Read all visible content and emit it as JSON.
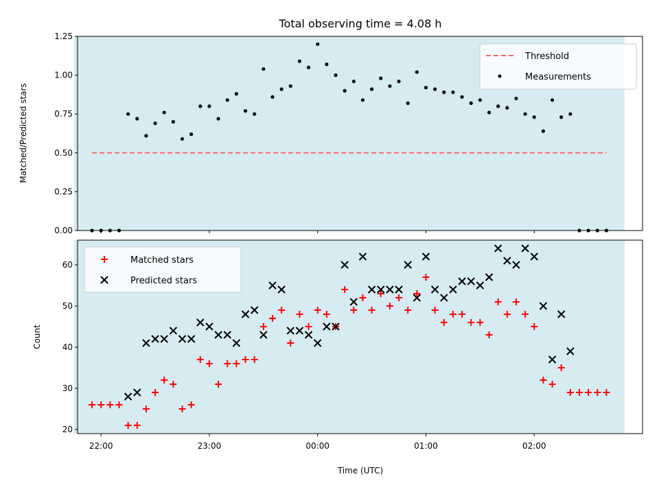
{
  "chart_data": [
    {
      "type": "scatter",
      "title": "Total observing time = 4.08 h",
      "ylabel": "Matched/Predicted stars",
      "xlabel": "",
      "ylim": [
        0,
        1.25
      ],
      "yticks": [
        "0.00",
        "0.25",
        "0.50",
        "0.75",
        "1.00",
        "1.25"
      ],
      "shaded_region": {
        "start": "21:45",
        "end": "02:50",
        "color": "#add8e6"
      },
      "threshold": {
        "name": "Threshold",
        "y": 0.5,
        "x_start": "21:55",
        "x_end": "02:40",
        "color": "#ff6666"
      },
      "series": [
        {
          "name": "Measurements",
          "marker": "dot",
          "color": "#000000",
          "points": [
            [
              "21:55",
              0.0
            ],
            [
              "22:00",
              0.0
            ],
            [
              "22:05",
              0.0
            ],
            [
              "22:10",
              0.0
            ],
            [
              "22:15",
              0.75
            ],
            [
              "22:20",
              0.72
            ],
            [
              "22:25",
              0.61
            ],
            [
              "22:30",
              0.69
            ],
            [
              "22:35",
              0.76
            ],
            [
              "22:40",
              0.7
            ],
            [
              "22:45",
              0.59
            ],
            [
              "22:50",
              0.62
            ],
            [
              "22:55",
              0.8
            ],
            [
              "23:00",
              0.8
            ],
            [
              "23:05",
              0.72
            ],
            [
              "23:10",
              0.84
            ],
            [
              "23:15",
              0.88
            ],
            [
              "23:20",
              0.77
            ],
            [
              "23:25",
              0.75
            ],
            [
              "23:30",
              1.04
            ],
            [
              "23:35",
              0.86
            ],
            [
              "23:40",
              0.91
            ],
            [
              "23:45",
              0.93
            ],
            [
              "23:50",
              1.09
            ],
            [
              "23:55",
              1.05
            ],
            [
              "00:00",
              1.2
            ],
            [
              "00:05",
              1.07
            ],
            [
              "00:10",
              1.0
            ],
            [
              "00:15",
              0.9
            ],
            [
              "00:20",
              0.96
            ],
            [
              "00:25",
              0.84
            ],
            [
              "00:30",
              0.91
            ],
            [
              "00:35",
              0.98
            ],
            [
              "00:40",
              0.93
            ],
            [
              "00:45",
              0.96
            ],
            [
              "00:50",
              0.82
            ],
            [
              "00:55",
              1.02
            ],
            [
              "01:00",
              0.92
            ],
            [
              "01:05",
              0.91
            ],
            [
              "01:10",
              0.89
            ],
            [
              "01:15",
              0.89
            ],
            [
              "01:20",
              0.86
            ],
            [
              "01:25",
              0.82
            ],
            [
              "01:30",
              0.84
            ],
            [
              "01:35",
              0.76
            ],
            [
              "01:40",
              0.8
            ],
            [
              "01:45",
              0.79
            ],
            [
              "01:50",
              0.85
            ],
            [
              "01:55",
              0.75
            ],
            [
              "02:00",
              0.73
            ],
            [
              "02:05",
              0.64
            ],
            [
              "02:10",
              0.84
            ],
            [
              "02:15",
              0.73
            ],
            [
              "02:20",
              0.75
            ],
            [
              "02:25",
              0.0
            ],
            [
              "02:30",
              0.0
            ],
            [
              "02:35",
              0.0
            ],
            [
              "02:40",
              0.0
            ]
          ]
        }
      ],
      "legend": {
        "placement": "top-right",
        "entries": [
          "Threshold",
          "Measurements"
        ]
      }
    },
    {
      "type": "scatter",
      "title": "",
      "ylabel": "Count",
      "xlabel": "Time (UTC)",
      "ylim": [
        19,
        66
      ],
      "yticks": [
        "20",
        "30",
        "40",
        "50",
        "60"
      ],
      "xticks": [
        "22:00",
        "23:00",
        "00:00",
        "01:00",
        "02:00"
      ],
      "shaded_region": {
        "start": "21:45",
        "end": "02:50",
        "color": "#add8e6"
      },
      "series": [
        {
          "name": "Matched stars",
          "marker": "plus",
          "color": "#ff0000",
          "points": [
            [
              "21:55",
              26
            ],
            [
              "22:00",
              26
            ],
            [
              "22:05",
              26
            ],
            [
              "22:10",
              26
            ],
            [
              "22:15",
              21
            ],
            [
              "22:20",
              21
            ],
            [
              "22:25",
              25
            ],
            [
              "22:30",
              29
            ],
            [
              "22:35",
              32
            ],
            [
              "22:40",
              31
            ],
            [
              "22:45",
              25
            ],
            [
              "22:50",
              26
            ],
            [
              "22:55",
              37
            ],
            [
              "23:00",
              36
            ],
            [
              "23:05",
              31
            ],
            [
              "23:10",
              36
            ],
            [
              "23:15",
              36
            ],
            [
              "23:20",
              37
            ],
            [
              "23:25",
              37
            ],
            [
              "23:30",
              45
            ],
            [
              "23:35",
              47
            ],
            [
              "23:40",
              49
            ],
            [
              "23:45",
              41
            ],
            [
              "23:50",
              48
            ],
            [
              "23:55",
              45
            ],
            [
              "00:00",
              49
            ],
            [
              "00:05",
              48
            ],
            [
              "00:10",
              45
            ],
            [
              "00:15",
              54
            ],
            [
              "00:20",
              49
            ],
            [
              "00:25",
              52
            ],
            [
              "00:30",
              49
            ],
            [
              "00:35",
              53
            ],
            [
              "00:40",
              50
            ],
            [
              "00:45",
              52
            ],
            [
              "00:50",
              49
            ],
            [
              "00:55",
              53
            ],
            [
              "01:00",
              57
            ],
            [
              "01:05",
              49
            ],
            [
              "01:10",
              46
            ],
            [
              "01:15",
              48
            ],
            [
              "01:20",
              48
            ],
            [
              "01:25",
              46
            ],
            [
              "01:30",
              46
            ],
            [
              "01:35",
              43
            ],
            [
              "01:40",
              51
            ],
            [
              "01:45",
              48
            ],
            [
              "01:50",
              51
            ],
            [
              "01:55",
              48
            ],
            [
              "02:00",
              45
            ],
            [
              "02:05",
              32
            ],
            [
              "02:10",
              31
            ],
            [
              "02:15",
              35
            ],
            [
              "02:20",
              29
            ],
            [
              "02:25",
              29
            ],
            [
              "02:30",
              29
            ],
            [
              "02:35",
              29
            ],
            [
              "02:40",
              29
            ]
          ]
        },
        {
          "name": "Predicted stars",
          "marker": "x",
          "color": "#000000",
          "points": [
            [
              "22:15",
              28
            ],
            [
              "22:20",
              29
            ],
            [
              "22:25",
              41
            ],
            [
              "22:30",
              42
            ],
            [
              "22:35",
              42
            ],
            [
              "22:40",
              44
            ],
            [
              "22:45",
              42
            ],
            [
              "22:50",
              42
            ],
            [
              "22:55",
              46
            ],
            [
              "23:00",
              45
            ],
            [
              "23:05",
              43
            ],
            [
              "23:10",
              43
            ],
            [
              "23:15",
              41
            ],
            [
              "23:20",
              48
            ],
            [
              "23:25",
              49
            ],
            [
              "23:30",
              43
            ],
            [
              "23:35",
              55
            ],
            [
              "23:40",
              54
            ],
            [
              "23:45",
              44
            ],
            [
              "23:50",
              44
            ],
            [
              "23:55",
              43
            ],
            [
              "00:00",
              41
            ],
            [
              "00:05",
              45
            ],
            [
              "00:10",
              45
            ],
            [
              "00:15",
              60
            ],
            [
              "00:20",
              51
            ],
            [
              "00:25",
              62
            ],
            [
              "00:30",
              54
            ],
            [
              "00:35",
              54
            ],
            [
              "00:40",
              54
            ],
            [
              "00:45",
              54
            ],
            [
              "00:50",
              60
            ],
            [
              "00:55",
              52
            ],
            [
              "01:00",
              62
            ],
            [
              "01:05",
              54
            ],
            [
              "01:10",
              52
            ],
            [
              "01:15",
              54
            ],
            [
              "01:20",
              56
            ],
            [
              "01:25",
              56
            ],
            [
              "01:30",
              55
            ],
            [
              "01:35",
              57
            ],
            [
              "01:40",
              64
            ],
            [
              "01:45",
              61
            ],
            [
              "01:50",
              60
            ],
            [
              "01:55",
              64
            ],
            [
              "02:00",
              62
            ],
            [
              "02:05",
              50
            ],
            [
              "02:10",
              37
            ],
            [
              "02:15",
              48
            ],
            [
              "02:20",
              39
            ]
          ]
        }
      ],
      "legend": {
        "placement": "top-left",
        "entries": [
          "Matched stars",
          "Predicted stars"
        ]
      }
    }
  ]
}
